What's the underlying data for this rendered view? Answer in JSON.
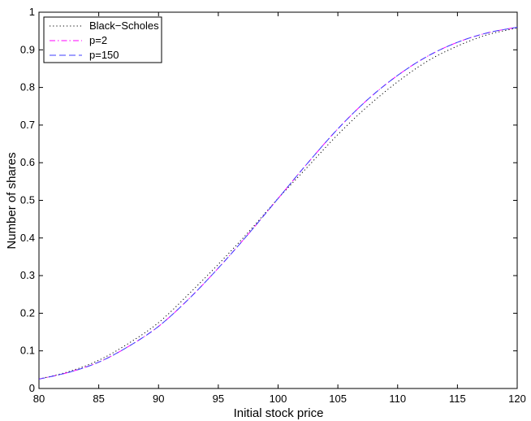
{
  "chart_data": {
    "type": "line",
    "title": "",
    "xlabel": "Initial stock price",
    "ylabel": "Number of shares",
    "xlim": [
      80,
      120
    ],
    "ylim": [
      0,
      1
    ],
    "xticks": [
      80,
      85,
      90,
      95,
      100,
      105,
      110,
      115,
      120
    ],
    "yticks": [
      0,
      0.1,
      0.2,
      0.3,
      0.4,
      0.5,
      0.6,
      0.7,
      0.8,
      0.9,
      1
    ],
    "xtick_labels": [
      "80",
      "85",
      "90",
      "95",
      "100",
      "105",
      "110",
      "115",
      "120"
    ],
    "ytick_labels": [
      "0",
      "0.1",
      "0.2",
      "0.3",
      "0.4",
      "0.5",
      "0.6",
      "0.7",
      "0.8",
      "0.9",
      "1"
    ],
    "grid": false,
    "legend_position": "top-left",
    "x": [
      80,
      82.5,
      85,
      87.5,
      90,
      92.5,
      95,
      97.5,
      100,
      102.5,
      105,
      107.5,
      110,
      112.5,
      115,
      117.5,
      120
    ],
    "series": [
      {
        "name": "Black−Scholes",
        "color": "#000000",
        "dash": "dotted",
        "values": [
          0.025,
          0.045,
          0.075,
          0.12,
          0.175,
          0.25,
          0.33,
          0.415,
          0.505,
          0.59,
          0.675,
          0.75,
          0.815,
          0.87,
          0.91,
          0.94,
          0.958
        ]
      },
      {
        "name": "p=2",
        "color": "#ff00ff",
        "dash": "dashdot",
        "values": [
          0.025,
          0.043,
          0.07,
          0.112,
          0.165,
          0.237,
          0.32,
          0.41,
          0.505,
          0.6,
          0.69,
          0.768,
          0.832,
          0.883,
          0.92,
          0.945,
          0.96
        ]
      },
      {
        "name": "p=150",
        "color": "#3f3fff",
        "dash": "dashed",
        "values": [
          0.025,
          0.043,
          0.07,
          0.112,
          0.165,
          0.237,
          0.32,
          0.41,
          0.505,
          0.6,
          0.69,
          0.768,
          0.832,
          0.883,
          0.92,
          0.945,
          0.96
        ]
      }
    ]
  }
}
